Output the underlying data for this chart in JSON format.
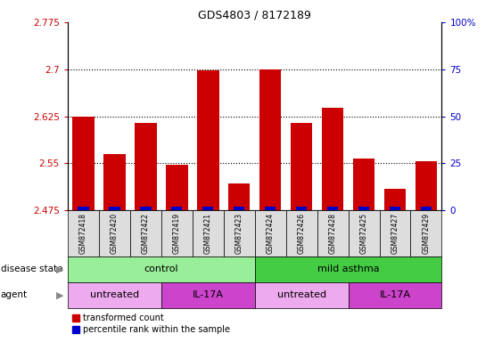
{
  "title": "GDS4803 / 8172189",
  "samples": [
    "GSM872418",
    "GSM872420",
    "GSM872422",
    "GSM872419",
    "GSM872421",
    "GSM872423",
    "GSM872424",
    "GSM872426",
    "GSM872428",
    "GSM872425",
    "GSM872427",
    "GSM872429"
  ],
  "red_values": [
    2.625,
    2.565,
    2.615,
    2.548,
    2.698,
    2.518,
    2.7,
    2.615,
    2.638,
    2.558,
    2.51,
    2.553
  ],
  "blue_values_pct": [
    2,
    2,
    2,
    2,
    2,
    2,
    2,
    2,
    2,
    2,
    2,
    2
  ],
  "ymin": 2.475,
  "ymax": 2.775,
  "yticks": [
    2.475,
    2.55,
    2.625,
    2.7,
    2.775
  ],
  "ytick_labels": [
    "2.475",
    "2.55",
    "2.625",
    "2.7",
    "2.775"
  ],
  "right_yticks_pct": [
    0,
    25,
    50,
    75,
    100
  ],
  "right_ytick_labels": [
    "0",
    "25",
    "50",
    "75",
    "100%"
  ],
  "hlines": [
    2.55,
    2.625,
    2.7
  ],
  "bar_color_red": "#cc0000",
  "bar_color_blue": "#0000cc",
  "left_axis_color": "#cc0000",
  "right_axis_color": "#0000cc",
  "disease_state_groups": [
    {
      "label": "control",
      "start": 0,
      "end": 6,
      "color": "#99ee99"
    },
    {
      "label": "mild asthma",
      "start": 6,
      "end": 12,
      "color": "#44cc44"
    }
  ],
  "agent_groups": [
    {
      "label": "untreated",
      "start": 0,
      "end": 3,
      "color": "#eeaaee"
    },
    {
      "label": "IL-17A",
      "start": 3,
      "end": 6,
      "color": "#cc44cc"
    },
    {
      "label": "untreated",
      "start": 6,
      "end": 9,
      "color": "#eeaaee"
    },
    {
      "label": "IL-17A",
      "start": 9,
      "end": 12,
      "color": "#cc44cc"
    }
  ],
  "legend_red_label": "transformed count",
  "legend_blue_label": "percentile rank within the sample",
  "bar_width": 0.7,
  "blue_bar_width": 0.35,
  "sample_box_color": "#dddddd",
  "title_fontsize": 9,
  "axis_fontsize": 7.5,
  "label_fontsize": 8,
  "sample_fontsize": 5.5,
  "legend_fontsize": 7,
  "row_label_fontsize": 7.5
}
